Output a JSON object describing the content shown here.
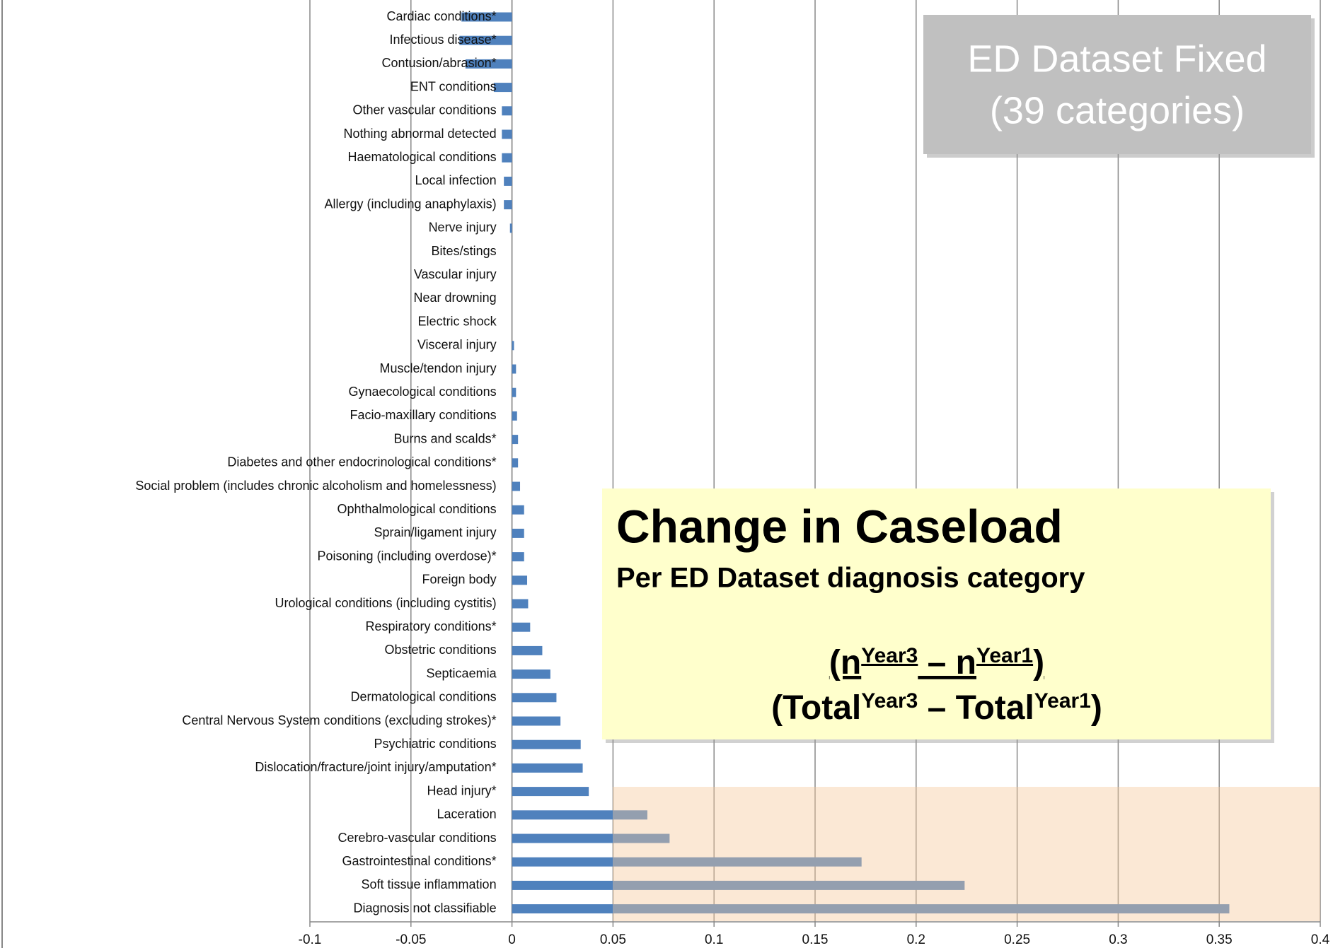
{
  "chart_data": {
    "type": "barh",
    "categories": [
      "Cardiac conditions*",
      "Infectious disease*",
      "Contusion/abrasion*",
      "ENT conditions",
      "Other vascular conditions",
      "Nothing abnormal detected",
      "Haematological conditions",
      "Local infection",
      "Allergy (including anaphylaxis)",
      "Nerve injury",
      "Bites/stings",
      "Vascular injury",
      "Near drowning",
      "Electric shock",
      "Visceral injury",
      "Muscle/tendon injury",
      "Gynaecological conditions",
      "Facio-maxillary conditions",
      "Burns and scalds*",
      "Diabetes and other endocrinological conditions*",
      "Social problem (includes chronic alcoholism and homelessness)",
      "Ophthalmological conditions",
      "Sprain/ligament injury",
      "Poisoning (including overdose)*",
      "Foreign body",
      "Urological conditions (including cystitis)",
      "Respiratory conditions*",
      "Obstetric conditions",
      "Septicaemia",
      "Dermatological conditions",
      "Central Nervous System conditions (excluding strokes)*",
      "Psychiatric conditions",
      "Dislocation/fracture/joint injury/amputation*",
      "Head injury*",
      "Laceration",
      "Cerebro-vascular conditions",
      "Gastrointestinal conditions*",
      "Soft tissue inflammation",
      "Diagnosis not classifiable"
    ],
    "values": [
      -0.025,
      -0.026,
      -0.023,
      -0.009,
      -0.005,
      -0.005,
      -0.005,
      -0.004,
      -0.004,
      -0.001,
      0,
      0,
      0,
      0,
      0.001,
      0.002,
      0.002,
      0.0025,
      0.003,
      0.003,
      0.004,
      0.006,
      0.006,
      0.006,
      0.0075,
      0.008,
      0.009,
      0.015,
      0.019,
      0.022,
      0.024,
      0.034,
      0.035,
      0.038,
      0.067,
      0.078,
      0.173,
      0.224,
      0.355
    ],
    "color": "#4f81bd",
    "xlim": [
      -0.1,
      0.4
    ],
    "xticks": [
      -0.1,
      -0.05,
      0,
      0.05,
      0.1,
      0.15,
      0.2,
      0.25,
      0.3,
      0.35,
      0.4
    ],
    "grid": true,
    "annotations": {
      "badge": [
        "ED Dataset Fixed",
        "(39 categories)"
      ],
      "title": "Change in Caseload",
      "subtitle": "Per ED Dataset diagnosis category",
      "numerator": [
        {
          "text": "(n",
          "sup": false
        },
        {
          "text": "Year3",
          "sup": true
        },
        {
          "text": " – n",
          "sup": false
        },
        {
          "text": "Year1",
          "sup": true
        },
        {
          "text": ")",
          "sup": false
        }
      ],
      "denominator": [
        {
          "text": "(Total",
          "sup": false
        },
        {
          "text": "Year3",
          "sup": true
        },
        {
          "text": " – Total",
          "sup": false
        },
        {
          "text": "Year1",
          "sup": true
        },
        {
          "text": ")",
          "sup": false
        }
      ]
    }
  }
}
